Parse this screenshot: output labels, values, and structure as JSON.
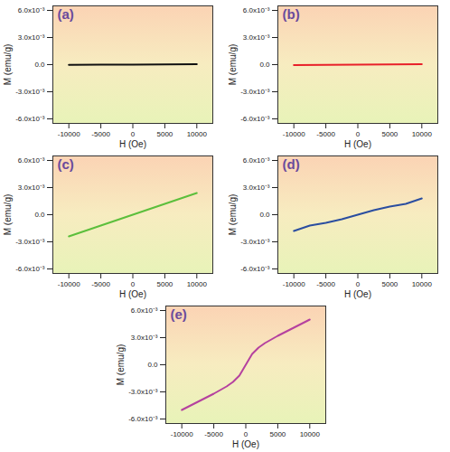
{
  "chart_data": [
    {
      "type": "line",
      "title": "(a)",
      "xlabel": "H (Oe)",
      "ylabel": "M (emu/g)",
      "x": [
        -10000,
        -5000,
        0,
        5000,
        10000
      ],
      "values": [
        -3e-05,
        -1e-05,
        0,
        2e-05,
        4e-05
      ],
      "color": "#111111",
      "xlim": [
        -12500,
        12500
      ],
      "ylim": [
        -0.0065,
        0.0065
      ],
      "xticks": [
        -10000,
        -5000,
        0,
        5000,
        10000
      ],
      "yticks": [
        {
          "value": -0.006,
          "label": "-6.0x10⁻³"
        },
        {
          "value": -0.003,
          "label": "-3.0x10⁻³"
        },
        {
          "value": 0,
          "label": "0.0"
        },
        {
          "value": 0.003,
          "label": "3.0x10⁻³"
        },
        {
          "value": 0.006,
          "label": "6.0x10⁻³"
        }
      ]
    },
    {
      "type": "line",
      "title": "(b)",
      "xlabel": "H (Oe)",
      "ylabel": "M (emu/g)",
      "x": [
        -10000,
        -5000,
        0,
        5000,
        10000
      ],
      "values": [
        -5e-05,
        -2e-05,
        0,
        2e-05,
        5e-05
      ],
      "color": "#e8202a",
      "xlim": [
        -12500,
        12500
      ],
      "ylim": [
        -0.0065,
        0.0065
      ],
      "xticks": [
        -10000,
        -5000,
        0,
        5000,
        10000
      ],
      "yticks": [
        {
          "value": -0.006,
          "label": "-6.0x10⁻³"
        },
        {
          "value": -0.003,
          "label": "-3.0x10⁻³"
        },
        {
          "value": 0,
          "label": "0.0"
        },
        {
          "value": 0.003,
          "label": "3.0x10⁻³"
        },
        {
          "value": 0.006,
          "label": "6.0x10⁻³"
        }
      ]
    },
    {
      "type": "line",
      "title": "(c)",
      "xlabel": "H (Oe)",
      "ylabel": "M (emu/g)",
      "x": [
        -10000,
        -5000,
        0,
        5000,
        10000
      ],
      "values": [
        -0.0024,
        -0.0012,
        0,
        0.0012,
        0.0024
      ],
      "color": "#5cbf3c",
      "xlim": [
        -12500,
        12500
      ],
      "ylim": [
        -0.0065,
        0.0065
      ],
      "xticks": [
        -10000,
        -5000,
        0,
        5000,
        10000
      ],
      "yticks": [
        {
          "value": -0.006,
          "label": "-6.0x10⁻³"
        },
        {
          "value": -0.003,
          "label": "-3.0x10⁻³"
        },
        {
          "value": 0,
          "label": "0.0"
        },
        {
          "value": 0.003,
          "label": "3.0x10⁻³"
        },
        {
          "value": 0.006,
          "label": "6.0x10⁻³"
        }
      ]
    },
    {
      "type": "line",
      "title": "(d)",
      "xlabel": "H (Oe)",
      "ylabel": "M (emu/g)",
      "x": [
        -10000,
        -7500,
        -5000,
        -2500,
        0,
        2500,
        5000,
        7500,
        10000
      ],
      "values": [
        -0.0018,
        -0.0012,
        -0.0009,
        -0.0005,
        0,
        0.0005,
        0.0009,
        0.0012,
        0.0018
      ],
      "color": "#2b4ea0",
      "xlim": [
        -12500,
        12500
      ],
      "ylim": [
        -0.0065,
        0.0065
      ],
      "xticks": [
        -10000,
        -5000,
        0,
        5000,
        10000
      ],
      "yticks": [
        {
          "value": -0.006,
          "label": "-6.0x10⁻³"
        },
        {
          "value": -0.003,
          "label": "-3.0x10⁻³"
        },
        {
          "value": 0,
          "label": "0.0"
        },
        {
          "value": 0.003,
          "label": "3.0x10⁻³"
        },
        {
          "value": 0.006,
          "label": "6.0x10⁻³"
        }
      ]
    },
    {
      "type": "line",
      "title": "(e)",
      "xlabel": "H (Oe)",
      "ylabel": "M (emu/g)",
      "x": [
        -10000,
        -7500,
        -5000,
        -3000,
        -2000,
        -1000,
        -500,
        0,
        500,
        1000,
        2000,
        3000,
        5000,
        7500,
        10000
      ],
      "values": [
        -0.005,
        -0.0041,
        -0.0032,
        -0.0024,
        -0.0019,
        -0.0012,
        -0.0006,
        0,
        0.0006,
        0.0012,
        0.0019,
        0.0024,
        0.0032,
        0.0041,
        0.005
      ],
      "color": "#b5419f",
      "xlim": [
        -12500,
        12500
      ],
      "ylim": [
        -0.0065,
        0.0065
      ],
      "xticks": [
        -10000,
        -5000,
        0,
        5000,
        10000
      ],
      "yticks": [
        {
          "value": -0.006,
          "label": "-6.0x10⁻³"
        },
        {
          "value": -0.003,
          "label": "-3.0x10⁻³"
        },
        {
          "value": 0,
          "label": "0.0"
        },
        {
          "value": 0.003,
          "label": "3.0x10⁻³"
        },
        {
          "value": 0.006,
          "label": "6.0x10⁻³"
        }
      ]
    }
  ]
}
